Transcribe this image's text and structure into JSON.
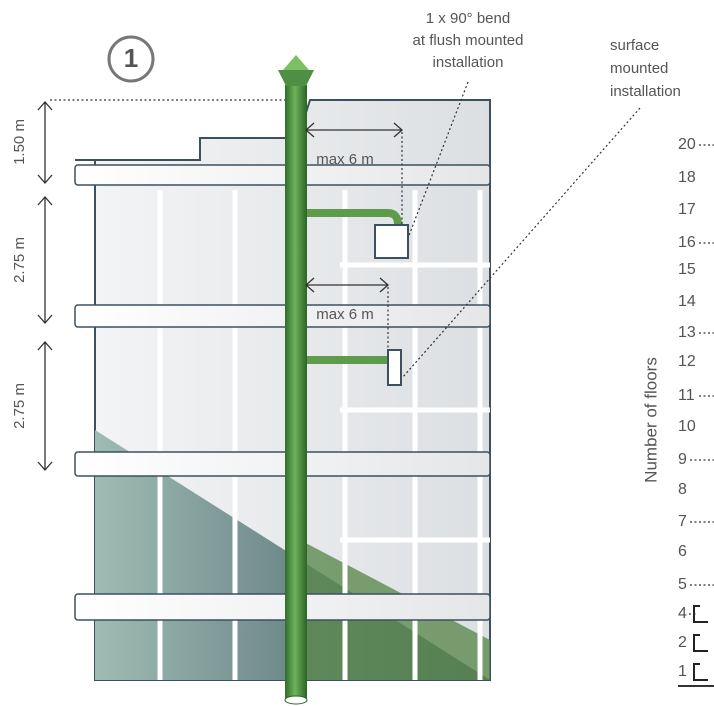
{
  "badge": "1",
  "annotations": {
    "flush": [
      "1 x 90° bend",
      "at flush mounted",
      "installation"
    ],
    "surface": [
      "surface",
      "mounted",
      "installation"
    ]
  },
  "dimensions": [
    "1.50 m",
    "2.75 m",
    "2.75 m"
  ],
  "distances": [
    "max 6 m",
    "max 6 m"
  ],
  "floor_axis": {
    "title": "Number of floors",
    "floors": [
      20,
      18,
      17,
      16,
      15,
      14,
      13,
      12,
      11,
      10,
      9,
      8,
      7,
      6,
      5,
      4,
      2,
      1
    ]
  }
}
